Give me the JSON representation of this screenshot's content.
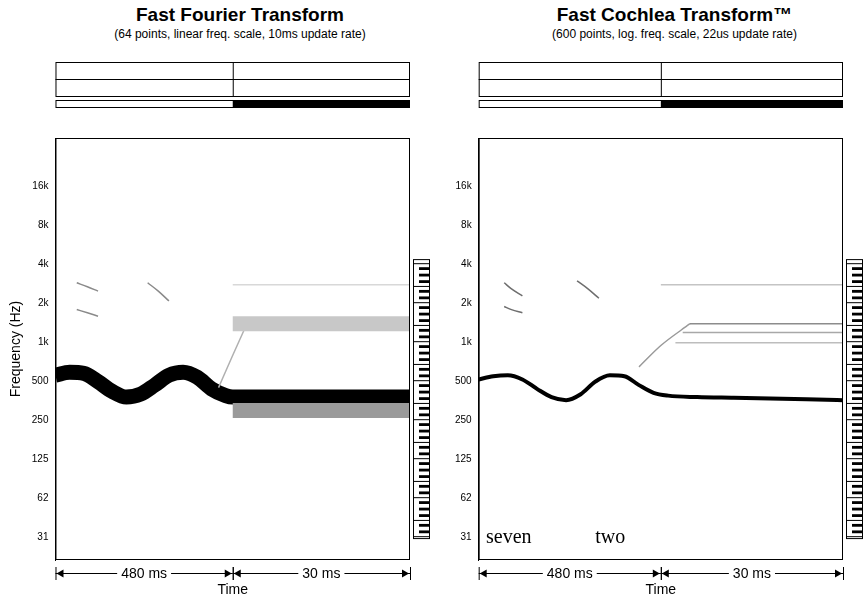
{
  "chart_data": [
    {
      "type": "line",
      "title": "Fast Fourier Transform",
      "subtitle": "(64 points, linear freq. scale, 10ms update rate)",
      "y_label": "Frequency (Hz)",
      "x_label": "Time",
      "segments": [
        {
          "label": "480 ms",
          "from": 0,
          "to": 0.5
        },
        {
          "label": "30 ms",
          "from": 0.5,
          "to": 1
        }
      ],
      "xlim": [
        0,
        1
      ],
      "ylim": [
        21,
        38000
      ],
      "yticks": [
        {
          "value": 31.25,
          "label": "31"
        },
        {
          "value": 62.5,
          "label": "62"
        },
        125,
        250,
        500,
        {
          "value": 1000,
          "label": "1k"
        },
        {
          "value": 2000,
          "label": "2k"
        },
        {
          "value": 4000,
          "label": "4k"
        },
        {
          "value": 8000,
          "label": "8k"
        },
        {
          "value": 16000,
          "label": "16k"
        }
      ],
      "log": "y",
      "grid": false,
      "tick_labels": "y",
      "series": [
        {
          "color": "#9a9a9a",
          "line_style": "band",
          "x": [
            0.5,
            0.6,
            0.7,
            0.8,
            0.9,
            1
          ],
          "values": [
            300,
            300,
            300,
            300,
            300,
            300
          ]
        },
        {
          "color": "#c8c8c8",
          "line_style": "band",
          "x": [
            0.5,
            0.6,
            0.7,
            0.8,
            0.9,
            1
          ],
          "values": [
            1400,
            1400,
            1400,
            1400,
            1400,
            1400
          ]
        },
        {
          "color": "#d8d8d8",
          "line_style": "solid",
          "x": [
            0.5,
            0.6,
            0.7,
            0.8,
            0.9,
            1
          ],
          "values": [
            2800,
            2800,
            2800,
            2800,
            2800,
            2800
          ]
        },
        {
          "color": "#b0b0b0",
          "line_style": "solid",
          "x": [
            0.46,
            0.5,
            0.54
          ],
          "values": [
            450,
            800,
            1400
          ]
        },
        {
          "color": "#8a8a8a",
          "line_style": "solid",
          "x": [
            0.06,
            0.09,
            0.12
          ],
          "values": [
            2900,
            2700,
            2500
          ]
        },
        {
          "color": "#8a8a8a",
          "line_style": "solid",
          "x": [
            0.06,
            0.09,
            0.12
          ],
          "values": [
            1800,
            1700,
            1600
          ]
        },
        {
          "color": "#8a8a8a",
          "line_style": "solid",
          "x": [
            0.26,
            0.29,
            0.32
          ],
          "values": [
            2900,
            2500,
            2100
          ]
        },
        {
          "color": "#000000",
          "line_style": "band",
          "x": [
            0,
            0.04,
            0.08,
            0.12,
            0.16,
            0.2,
            0.24,
            0.28,
            0.32,
            0.36,
            0.4,
            0.44,
            0.48,
            0.5,
            0.6,
            0.7,
            0.8,
            0.9,
            1
          ],
          "values": [
            560,
            590,
            580,
            500,
            420,
            380,
            400,
            470,
            560,
            590,
            540,
            440,
            390,
            380,
            380,
            380,
            380,
            380,
            380
          ]
        }
      ]
    },
    {
      "type": "line",
      "title": "Fast Cochlea Transform™",
      "subtitle": "(600 points, log. freq. scale, 22us update rate)",
      "x_label": "Time",
      "segments": [
        {
          "label": "480 ms",
          "from": 0,
          "to": 0.5
        },
        {
          "label": "30 ms",
          "from": 0.5,
          "to": 1
        }
      ],
      "xlim": [
        0,
        1
      ],
      "ylim": [
        21,
        38000
      ],
      "yticks": [
        {
          "value": 31.25,
          "label": "31"
        },
        {
          "value": 62.5,
          "label": "62"
        },
        125,
        250,
        500,
        {
          "value": 1000,
          "label": "1k"
        },
        {
          "value": 2000,
          "label": "2k"
        },
        {
          "value": 4000,
          "label": "4k"
        },
        {
          "value": 8000,
          "label": "8k"
        },
        {
          "value": 16000,
          "label": "16k"
        }
      ],
      "log": "y",
      "grid": false,
      "tick_labels": "y",
      "annotations": [
        {
          "text": "seven",
          "x": 0.02,
          "y": 31
        },
        {
          "text": "two",
          "x": 0.32,
          "y": 31
        }
      ],
      "series": [
        {
          "color": "#8c8c8c",
          "line_style": "solid",
          "x": [
            0.58,
            0.7,
            0.8,
            0.9,
            1
          ],
          "values": [
            1400,
            1400,
            1400,
            1400,
            1400
          ]
        },
        {
          "color": "#a8a8a8",
          "line_style": "solid",
          "x": [
            0.56,
            0.7,
            0.8,
            0.9,
            1
          ],
          "values": [
            1200,
            1200,
            1200,
            1200,
            1200
          ]
        },
        {
          "color": "#bdbdbd",
          "line_style": "solid",
          "x": [
            0.54,
            0.7,
            0.8,
            0.9,
            1
          ],
          "values": [
            1000,
            1000,
            1000,
            1000,
            1000
          ]
        },
        {
          "color": "#c4c4c4",
          "line_style": "solid",
          "x": [
            0.5,
            0.6,
            0.7,
            0.8,
            0.9,
            1
          ],
          "values": [
            2800,
            2800,
            2800,
            2800,
            2800,
            2800
          ]
        },
        {
          "color": "#9a9a9a",
          "line_style": "solid",
          "x": [
            0.44,
            0.5,
            0.58
          ],
          "values": [
            650,
            950,
            1400
          ]
        },
        {
          "color": "#6e6e6e",
          "line_style": "solid",
          "x": [
            0.07,
            0.09,
            0.12
          ],
          "values": [
            2900,
            2600,
            2300
          ]
        },
        {
          "color": "#6e6e6e",
          "line_style": "solid",
          "x": [
            0.07,
            0.09,
            0.12
          ],
          "values": [
            1900,
            1800,
            1700
          ]
        },
        {
          "color": "#6e6e6e",
          "line_style": "solid",
          "x": [
            0.27,
            0.3,
            0.33
          ],
          "values": [
            3000,
            2600,
            2200
          ]
        },
        {
          "color": "#000000",
          "line_style": "thick",
          "x": [
            0,
            0.04,
            0.08,
            0.12,
            0.16,
            0.2,
            0.24,
            0.28,
            0.32,
            0.36,
            0.4,
            0.44,
            0.48,
            0.52,
            0.6,
            0.7,
            0.8,
            0.9,
            1
          ],
          "values": [
            520,
            550,
            560,
            520,
            440,
            380,
            360,
            400,
            500,
            560,
            550,
            470,
            410,
            390,
            380,
            375,
            370,
            365,
            360
          ]
        }
      ]
    }
  ]
}
